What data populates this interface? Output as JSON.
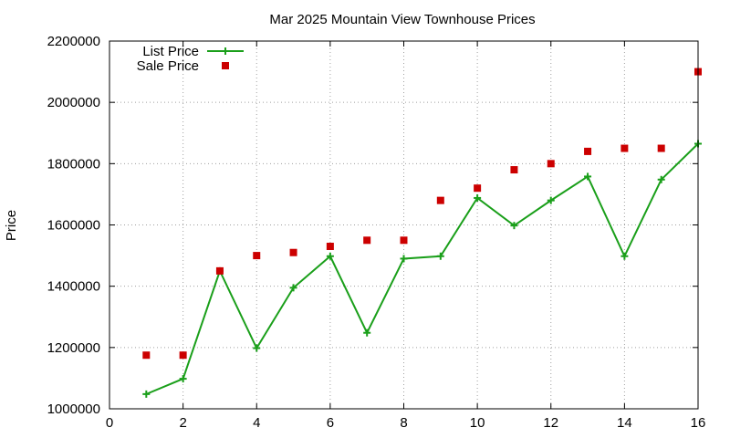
{
  "chart_data": {
    "type": "line",
    "title": "Mar 2025 Mountain View Townhouse Prices",
    "xlabel": "",
    "ylabel": "Price",
    "xlim": [
      0,
      16
    ],
    "ylim": [
      1000000,
      2200000
    ],
    "xticks": [
      0,
      2,
      4,
      6,
      8,
      10,
      12,
      14,
      16
    ],
    "yticks": [
      1000000,
      1200000,
      1400000,
      1600000,
      1800000,
      2000000,
      2200000
    ],
    "grid": true,
    "legend_position": "top-left",
    "series": [
      {
        "name": "List Price",
        "style": "line-with-plus-markers",
        "color": "#1a9f1a",
        "x": [
          1,
          2,
          3,
          4,
          5,
          6,
          7,
          8,
          9,
          10,
          11,
          12,
          13,
          14,
          15,
          16
        ],
        "y": [
          1048000,
          1098000,
          1450000,
          1198000,
          1395000,
          1498000,
          1248000,
          1490000,
          1498000,
          1688000,
          1598000,
          1680000,
          1758000,
          1498000,
          1748000,
          1865000
        ]
      },
      {
        "name": "Sale Price",
        "style": "square-markers",
        "color": "#cc0000",
        "x": [
          1,
          2,
          3,
          4,
          5,
          6,
          7,
          8,
          9,
          10,
          11,
          12,
          13,
          14,
          15,
          16
        ],
        "y": [
          1175000,
          1175000,
          1450000,
          1500000,
          1510000,
          1530000,
          1550000,
          1550000,
          1680000,
          1720000,
          1780000,
          1800000,
          1840000,
          1850000,
          1850000,
          2100000
        ]
      }
    ]
  }
}
